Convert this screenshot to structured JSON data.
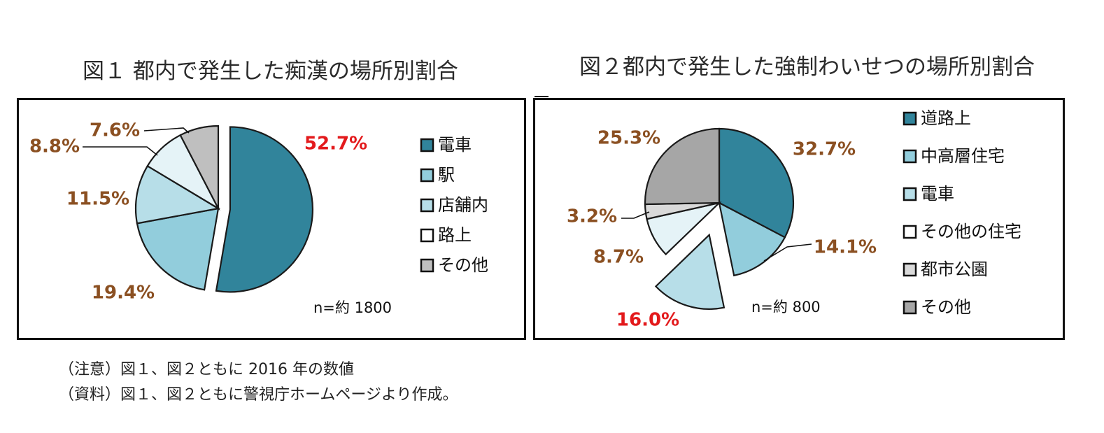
{
  "chart_data": [
    {
      "type": "pie",
      "title": "図１ 都内で発生した痴漢の場所別割合",
      "slices": [
        {
          "label": "電車",
          "value": 52.7,
          "display": "52.7%",
          "color": "#31849b",
          "exploded": true,
          "label_color": "#e31a1c",
          "legend_box": "#31849b"
        },
        {
          "label": "駅",
          "value": 19.4,
          "display": "19.4%",
          "color": "#92cddc",
          "exploded": false,
          "label_color": "#8b5022",
          "legend_box": "#92cddc"
        },
        {
          "label": "店舗内",
          "value": 11.5,
          "display": "11.5%",
          "color": "#b7dee8",
          "exploded": false,
          "label_color": "#8b5022",
          "legend_box": "#b7dee8"
        },
        {
          "label": "路上",
          "value": 8.8,
          "display": "8.8%",
          "color": "#e5f3f7",
          "exploded": false,
          "label_color": "#8b5022",
          "legend_box": "#ffffff"
        },
        {
          "label": "その他",
          "value": 7.6,
          "display": "7.6%",
          "color": "#bfbfbf",
          "exploded": false,
          "label_color": "#8b5022",
          "legend_box": "#bfbfbf"
        }
      ],
      "n_label": "n=約 1800"
    },
    {
      "type": "pie",
      "title": "図２都内で発生した強制わいせつの場所別割合",
      "slices": [
        {
          "label": "道路上",
          "value": 32.7,
          "display": "32.7%",
          "color": "#31849b",
          "exploded": false,
          "label_color": "#8b5022",
          "legend_box": "#31849b"
        },
        {
          "label": "中高層住宅",
          "value": 14.1,
          "display": "14.1%",
          "color": "#92cddc",
          "exploded": false,
          "label_color": "#8b5022",
          "legend_box": "#92cddc"
        },
        {
          "label": "電車",
          "value": 16.0,
          "display": "16.0%",
          "color": "#b7dee8",
          "exploded": true,
          "label_color": "#e31a1c",
          "legend_box": "#b7dee8"
        },
        {
          "label": "その他の住宅",
          "value": 8.7,
          "display": "8.7%",
          "color": "#e5f3f7",
          "exploded": false,
          "label_color": "#8b5022",
          "legend_box": "#ffffff"
        },
        {
          "label": "都市公園",
          "value": 3.2,
          "display": "3.2%",
          "color": "#d9d9d9",
          "exploded": false,
          "label_color": "#8b5022",
          "legend_box": "#d9d9d9"
        },
        {
          "label": "その他",
          "value": 25.3,
          "display": "25.3%",
          "color": "#a6a6a6",
          "exploded": false,
          "label_color": "#8b5022",
          "legend_box": "#a6a6a6"
        }
      ],
      "n_label": "n=約 800"
    }
  ],
  "notes": {
    "note1": "（注意）図１、図２ともに 2016 年の数値",
    "note2": "（資料）図１、図２ともに警視庁ホームページより作成。"
  }
}
